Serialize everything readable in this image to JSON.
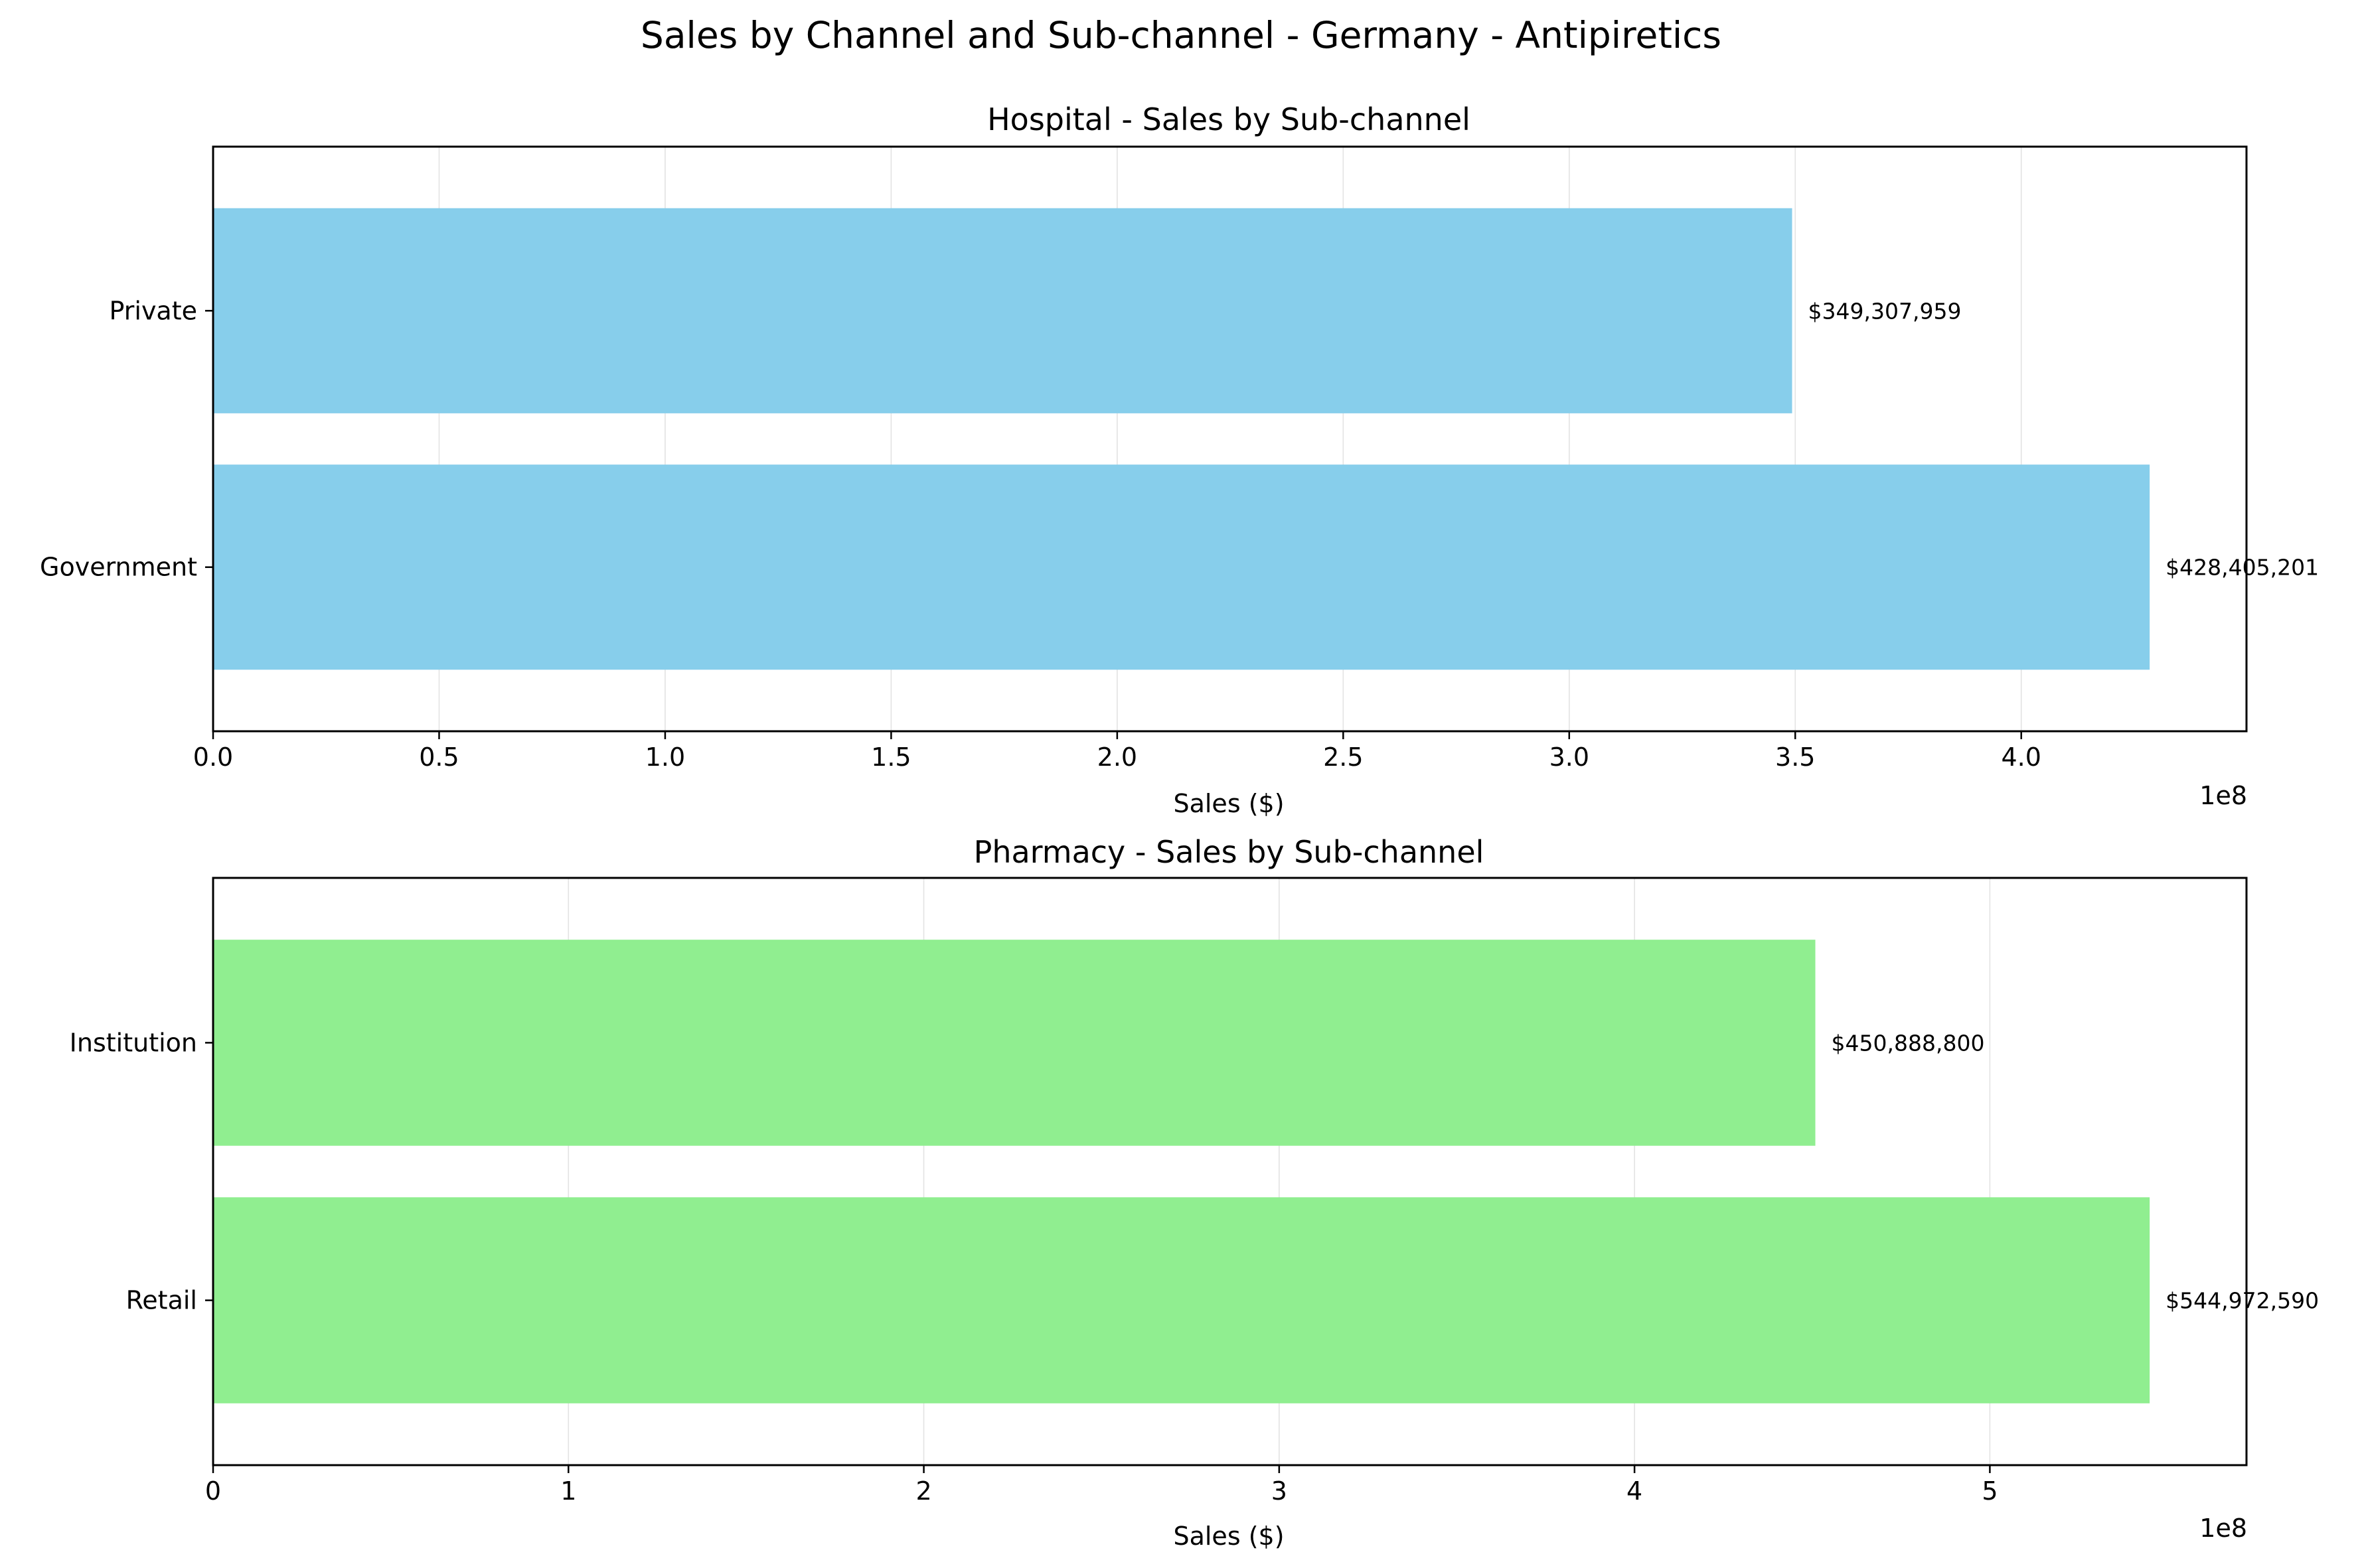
{
  "figure_title": "Sales by Channel and Sub-channel - Germany - Antipiretics",
  "chart_data": [
    {
      "type": "bar",
      "orientation": "horizontal",
      "title": "Hospital - Sales by Sub-channel",
      "categories": [
        "Government",
        "Private"
      ],
      "values": [
        428405201,
        349307959
      ],
      "data_labels": [
        "$428,405,201",
        "$349,307,959"
      ],
      "xlabel": "Sales ($)",
      "ylabel": "",
      "xlim": [
        0,
        449825461
      ],
      "x_ticks": [
        0,
        50000000,
        100000000,
        150000000,
        200000000,
        250000000,
        300000000,
        350000000,
        400000000
      ],
      "x_tick_labels": [
        "0.0",
        "0.5",
        "1.0",
        "1.5",
        "2.0",
        "2.5",
        "3.0",
        "3.5",
        "4.0"
      ],
      "offset_label": "1e8",
      "color": "#87CEEB",
      "grid": "x"
    },
    {
      "type": "bar",
      "orientation": "horizontal",
      "title": "Pharmacy - Sales by Sub-channel",
      "categories": [
        "Retail",
        "Institution"
      ],
      "values": [
        544972590,
        450888800
      ],
      "data_labels": [
        "$544,972,590",
        "$450,888,800"
      ],
      "xlabel": "Sales ($)",
      "ylabel": "",
      "xlim": [
        0,
        572221220
      ],
      "x_ticks": [
        0,
        100000000,
        200000000,
        300000000,
        400000000,
        500000000
      ],
      "x_tick_labels": [
        "0",
        "1",
        "2",
        "3",
        "4",
        "5"
      ],
      "offset_label": "1e8",
      "color": "#90EE90",
      "grid": "x"
    }
  ]
}
